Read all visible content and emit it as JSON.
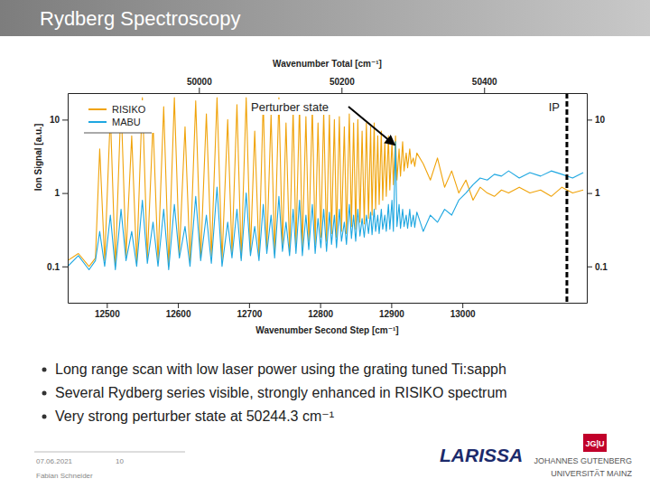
{
  "header": {
    "title": "Rydberg Spectroscopy"
  },
  "chart_data": {
    "type": "line",
    "xlabel": "Wavenumber Second Step [cm⁻¹]",
    "x2label": "Wavenumber Total [cm⁻¹]",
    "ylabel": "Ion Signal [a.u.]",
    "log": "y",
    "legend": "upper left",
    "xlim": [
      12445,
      13175
    ],
    "xticks": [
      12500,
      12600,
      12700,
      12800,
      12900,
      13000
    ],
    "x2lim": [
      49816,
      50544
    ],
    "x2ticks": [
      50000,
      50200,
      50400
    ],
    "ylim": [
      0.032,
      23
    ],
    "yticks": [
      0.1,
      1,
      10
    ],
    "annotations": [
      {
        "text": "Perturber state",
        "x": 12905,
        "y": 4.5
      },
      {
        "text": "IP",
        "x": 13147
      }
    ],
    "x": [
      12445,
      12460,
      12475,
      12484,
      12490,
      12497,
      12505,
      12512,
      12520,
      12527,
      12535,
      12542,
      12550,
      12557,
      12565,
      12572,
      12580,
      12587,
      12595,
      12602,
      12610,
      12617,
      12625,
      12632,
      12640,
      12647,
      12655,
      12662,
      12670,
      12676,
      12683,
      12689,
      12696,
      12702,
      12708,
      12714,
      12720,
      12725,
      12731,
      12736,
      12742,
      12747,
      12752,
      12757,
      12762,
      12766,
      12771,
      12775,
      12780,
      12784,
      12789,
      12793,
      12797,
      12801,
      12805,
      12809,
      12813,
      12816,
      12820,
      12823,
      12827,
      12830,
      12834,
      12837,
      12841,
      12844,
      12847,
      12850,
      12853,
      12856,
      12859,
      12862,
      12865,
      12868,
      12871,
      12873,
      12876,
      12878,
      12881,
      12883,
      12886,
      12888,
      12891,
      12893,
      12896,
      12898,
      12901,
      12903,
      12906,
      12908,
      12911,
      12913,
      12916,
      12918,
      12921,
      12923,
      12926,
      12928,
      12931,
      12933,
      12936,
      12945,
      12955,
      12965,
      12975,
      12985,
      12995,
      13005,
      13015,
      13025,
      13035,
      13045,
      13055,
      13065,
      13080,
      13095,
      13110,
      13125,
      13140,
      13155,
      13170
    ],
    "series": [
      {
        "name": "RISIKO",
        "color": "#f0a30a",
        "values": [
          0.12,
          0.15,
          0.1,
          0.13,
          4,
          0.12,
          12,
          0.1,
          18,
          0.14,
          6,
          0.11,
          20,
          0.13,
          9,
          0.12,
          15,
          0.1,
          20,
          0.15,
          8,
          0.12,
          18,
          0.13,
          12,
          0.14,
          20,
          0.12,
          10,
          0.15,
          16,
          0.13,
          20,
          0.16,
          7,
          0.14,
          18,
          0.17,
          12,
          0.15,
          20,
          0.18,
          9,
          0.16,
          14,
          0.2,
          16,
          0.18,
          11,
          0.22,
          15,
          0.2,
          9,
          0.25,
          13,
          0.22,
          12,
          0.28,
          10,
          0.25,
          11,
          0.3,
          8,
          0.28,
          12,
          0.35,
          9,
          0.32,
          10,
          0.4,
          7,
          0.38,
          9,
          0.45,
          8,
          0.5,
          9,
          0.6,
          6,
          0.7,
          7,
          0.8,
          5,
          0.9,
          6,
          1.1,
          5,
          1.3,
          6,
          1.5,
          4,
          1.7,
          5,
          2,
          3.5,
          2.2,
          4,
          2.5,
          3,
          2.3,
          3.5,
          2.5,
          1.5,
          3,
          1.2,
          2,
          1,
          1.5,
          0.8,
          1.2,
          1,
          0.9,
          1.1,
          1,
          1.2,
          1,
          1.1,
          0.9,
          1.2,
          1,
          1.1
        ]
      },
      {
        "name": "MABU",
        "color": "#1ea7e1",
        "values": [
          0.1,
          0.14,
          0.09,
          0.12,
          0.3,
          0.1,
          0.5,
          0.09,
          0.6,
          0.12,
          0.3,
          0.1,
          0.8,
          0.11,
          0.4,
          0.1,
          0.6,
          0.09,
          0.7,
          0.13,
          0.35,
          0.1,
          0.9,
          0.12,
          0.5,
          0.11,
          1.2,
          0.1,
          0.4,
          0.13,
          0.6,
          0.12,
          1,
          0.14,
          0.35,
          0.12,
          0.7,
          0.15,
          0.5,
          0.13,
          0.9,
          0.16,
          0.4,
          0.14,
          0.6,
          0.15,
          0.8,
          0.14,
          0.5,
          0.17,
          0.7,
          0.15,
          0.45,
          0.18,
          0.6,
          0.16,
          0.55,
          0.2,
          0.5,
          0.18,
          0.6,
          0.22,
          0.4,
          0.2,
          0.7,
          0.24,
          0.5,
          0.22,
          0.6,
          0.26,
          0.45,
          0.25,
          0.5,
          0.28,
          0.55,
          0.27,
          0.6,
          0.3,
          0.5,
          0.28,
          0.6,
          0.32,
          0.5,
          0.3,
          0.7,
          0.32,
          0.8,
          0.3,
          5,
          0.35,
          0.7,
          0.33,
          0.6,
          0.35,
          0.5,
          0.33,
          0.6,
          0.35,
          0.5,
          0.34,
          0.55,
          0.3,
          0.5,
          0.4,
          0.6,
          0.5,
          0.8,
          1,
          1.3,
          1.6,
          1.5,
          1.8,
          1.7,
          2,
          1.6,
          1.9,
          1.7,
          2,
          1.8,
          1.6,
          1.9
        ]
      }
    ]
  },
  "bullets": [
    "Long range scan with low laser power using the grating tuned Ti:sapph",
    "Several Rydberg series visible, strongly enhanced in RISIKO spectrum",
    "Very strong perturber state at 50244.3 cm⁻¹"
  ],
  "footer": {
    "date": "07.06.2021",
    "page": 10,
    "author": "Fabian Schneider",
    "logos": [
      "LARISSA",
      "JG|U",
      "JOHANNES GUTENBERG",
      "UNIVERSITÄT MAINZ"
    ]
  }
}
